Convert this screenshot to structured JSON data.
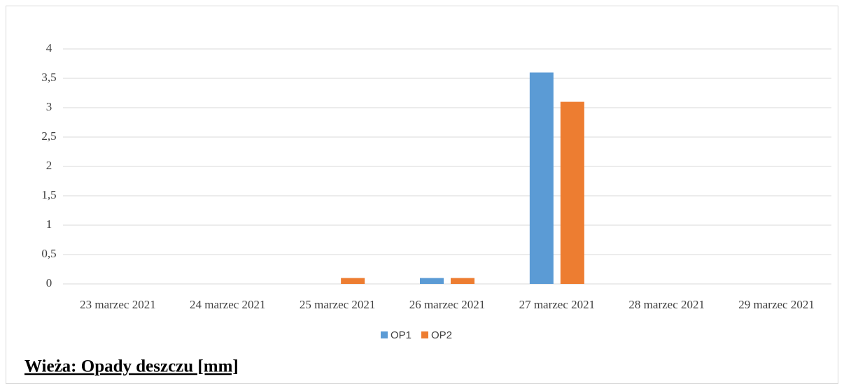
{
  "chart_data": {
    "type": "bar",
    "title": "Wieża: Opady deszczu [mm]",
    "categories": [
      "23 marzec 2021",
      "24 marzec 2021",
      "25 marzec 2021",
      "26 marzec 2021",
      "27 marzec 2021",
      "28 marzec 2021",
      "29 marzec 2021"
    ],
    "series": [
      {
        "name": "OP1",
        "color": "#5b9bd5",
        "values": [
          0,
          0,
          0,
          0.1,
          3.6,
          0,
          0
        ]
      },
      {
        "name": "OP2",
        "color": "#ed7d31",
        "values": [
          0,
          0,
          0.1,
          0.1,
          3.1,
          0,
          0
        ]
      }
    ],
    "ylim": [
      0,
      4
    ],
    "yticks": [
      0,
      {
        "value": 0.5,
        "label": "0,5"
      },
      1,
      {
        "value": 1.5,
        "label": "1,5"
      },
      2,
      {
        "value": 2.5,
        "label": "2,5"
      },
      3,
      {
        "value": 3.5,
        "label": "3,5"
      },
      4
    ],
    "grid": true,
    "legend": "bottom"
  }
}
